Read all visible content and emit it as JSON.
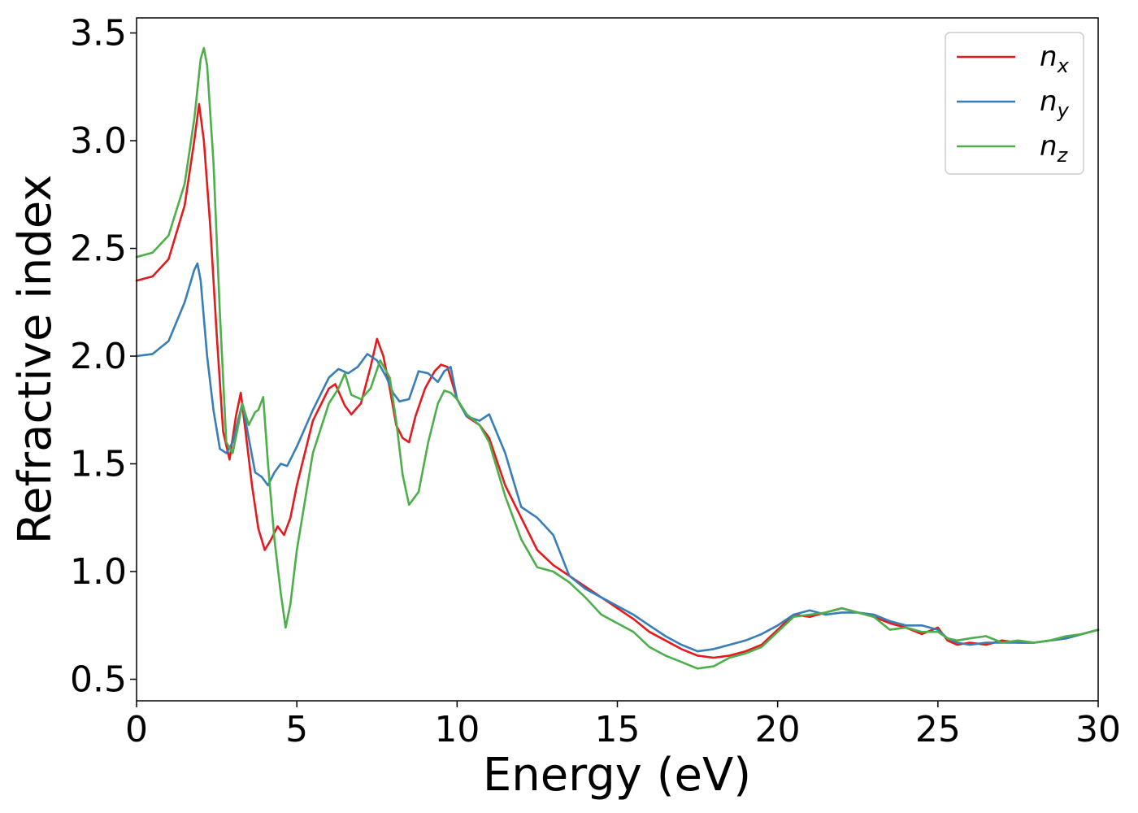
{
  "chart_data": {
    "type": "line",
    "title": "",
    "xlabel": "Energy (eV)",
    "ylabel": "Refractive index",
    "xlim": [
      0,
      30
    ],
    "ylim": [
      0.4,
      3.57
    ],
    "xticks": [
      0,
      5,
      10,
      15,
      20,
      25,
      30
    ],
    "xtick_labels": [
      "0",
      "5",
      "10",
      "15",
      "20",
      "25",
      "30"
    ],
    "yticks": [
      0.5,
      1.0,
      1.5,
      2.0,
      2.5,
      3.0,
      3.5
    ],
    "ytick_labels": [
      "0.5",
      "1.0",
      "1.5",
      "2.0",
      "2.5",
      "3.0",
      "3.5"
    ],
    "grid": false,
    "legend_position": "top-right",
    "series": [
      {
        "name": "n",
        "sub": "x",
        "color": "#e41a1c",
        "x": [
          0,
          0.5,
          1.0,
          1.5,
          1.8,
          1.95,
          2.1,
          2.3,
          2.5,
          2.7,
          2.9,
          3.1,
          3.25,
          3.4,
          3.6,
          3.8,
          4.0,
          4.2,
          4.4,
          4.6,
          4.8,
          5.0,
          5.5,
          6.0,
          6.2,
          6.5,
          6.7,
          7.0,
          7.3,
          7.5,
          7.7,
          7.9,
          8.1,
          8.3,
          8.5,
          8.7,
          9.0,
          9.3,
          9.5,
          9.7,
          10.0,
          10.3,
          10.7,
          11.0,
          11.5,
          12.0,
          12.5,
          13.0,
          13.5,
          14.0,
          14.5,
          15.0,
          15.5,
          16.0,
          16.5,
          17.0,
          17.5,
          18.0,
          18.5,
          19.0,
          19.5,
          20.0,
          20.5,
          21.0,
          21.5,
          22.0,
          22.5,
          23.0,
          23.5,
          24.0,
          24.5,
          25.0,
          25.3,
          25.6,
          26.0,
          26.5,
          27.0,
          27.5,
          28.0,
          28.5,
          29.0,
          29.5,
          30.0
        ],
        "y": [
          2.35,
          2.37,
          2.45,
          2.7,
          3.0,
          3.17,
          3.0,
          2.6,
          2.1,
          1.65,
          1.52,
          1.72,
          1.83,
          1.65,
          1.4,
          1.2,
          1.1,
          1.15,
          1.21,
          1.17,
          1.25,
          1.4,
          1.7,
          1.85,
          1.87,
          1.77,
          1.73,
          1.78,
          1.95,
          2.08,
          2.0,
          1.85,
          1.68,
          1.62,
          1.6,
          1.72,
          1.85,
          1.93,
          1.96,
          1.95,
          1.8,
          1.72,
          1.68,
          1.62,
          1.4,
          1.25,
          1.1,
          1.03,
          0.98,
          0.93,
          0.88,
          0.83,
          0.78,
          0.72,
          0.68,
          0.64,
          0.61,
          0.6,
          0.61,
          0.63,
          0.66,
          0.73,
          0.8,
          0.79,
          0.81,
          0.83,
          0.81,
          0.79,
          0.76,
          0.74,
          0.71,
          0.74,
          0.68,
          0.66,
          0.67,
          0.66,
          0.68,
          0.67,
          0.67,
          0.68,
          0.69,
          0.71,
          0.73
        ]
      },
      {
        "name": "n",
        "sub": "y",
        "color": "#377eb8",
        "x": [
          0,
          0.5,
          1.0,
          1.5,
          1.8,
          1.9,
          2.0,
          2.2,
          2.4,
          2.6,
          2.8,
          3.0,
          3.2,
          3.3,
          3.5,
          3.7,
          3.9,
          4.1,
          4.3,
          4.5,
          4.7,
          5.0,
          5.5,
          6.0,
          6.3,
          6.6,
          6.9,
          7.2,
          7.5,
          7.8,
          8.0,
          8.2,
          8.5,
          8.8,
          9.1,
          9.4,
          9.6,
          9.8,
          10.0,
          10.3,
          10.7,
          11.0,
          11.5,
          12.0,
          12.5,
          13.0,
          13.5,
          14.0,
          14.5,
          15.0,
          15.5,
          16.0,
          16.5,
          17.0,
          17.5,
          18.0,
          18.5,
          19.0,
          19.5,
          20.0,
          20.5,
          21.0,
          21.5,
          22.0,
          22.5,
          23.0,
          23.5,
          24.0,
          24.5,
          25.0,
          25.3,
          25.6,
          26.0,
          26.5,
          27.0,
          27.5,
          28.0,
          28.5,
          29.0,
          29.5,
          30.0
        ],
        "y": [
          2.0,
          2.01,
          2.07,
          2.25,
          2.4,
          2.43,
          2.35,
          2.0,
          1.75,
          1.57,
          1.55,
          1.6,
          1.72,
          1.78,
          1.62,
          1.46,
          1.44,
          1.4,
          1.46,
          1.5,
          1.49,
          1.58,
          1.75,
          1.9,
          1.94,
          1.92,
          1.95,
          2.01,
          1.98,
          1.9,
          1.83,
          1.79,
          1.8,
          1.93,
          1.92,
          1.88,
          1.93,
          1.95,
          1.8,
          1.72,
          1.7,
          1.73,
          1.55,
          1.3,
          1.25,
          1.17,
          0.98,
          0.92,
          0.88,
          0.84,
          0.8,
          0.75,
          0.7,
          0.66,
          0.63,
          0.64,
          0.66,
          0.68,
          0.71,
          0.75,
          0.8,
          0.82,
          0.8,
          0.81,
          0.81,
          0.8,
          0.77,
          0.75,
          0.75,
          0.73,
          0.69,
          0.67,
          0.66,
          0.67,
          0.67,
          0.67,
          0.67,
          0.68,
          0.69,
          0.71,
          0.73
        ]
      },
      {
        "name": "n",
        "sub": "z",
        "color": "#4daf4a",
        "x": [
          0,
          0.5,
          1.0,
          1.5,
          1.8,
          2.0,
          2.1,
          2.2,
          2.4,
          2.6,
          2.8,
          3.0,
          3.2,
          3.3,
          3.5,
          3.7,
          3.8,
          3.95,
          4.1,
          4.3,
          4.5,
          4.65,
          4.8,
          5.0,
          5.5,
          6.0,
          6.3,
          6.5,
          6.7,
          7.0,
          7.3,
          7.6,
          7.9,
          8.1,
          8.3,
          8.5,
          8.8,
          9.1,
          9.4,
          9.6,
          9.8,
          10.0,
          10.3,
          10.7,
          11.0,
          11.5,
          12.0,
          12.5,
          13.0,
          13.5,
          14.0,
          14.5,
          15.0,
          15.5,
          16.0,
          16.5,
          17.0,
          17.5,
          18.0,
          18.5,
          19.0,
          19.5,
          20.0,
          20.5,
          21.0,
          21.5,
          22.0,
          22.5,
          23.0,
          23.5,
          24.0,
          24.5,
          25.0,
          25.3,
          25.6,
          26.0,
          26.5,
          27.0,
          27.5,
          28.0,
          28.5,
          29.0,
          29.5,
          30.0
        ],
        "y": [
          2.46,
          2.48,
          2.56,
          2.8,
          3.1,
          3.38,
          3.43,
          3.35,
          2.9,
          2.2,
          1.6,
          1.55,
          1.7,
          1.78,
          1.68,
          1.74,
          1.75,
          1.81,
          1.5,
          1.15,
          0.9,
          0.74,
          0.85,
          1.1,
          1.55,
          1.78,
          1.85,
          1.92,
          1.82,
          1.8,
          1.85,
          1.98,
          1.9,
          1.7,
          1.45,
          1.31,
          1.37,
          1.6,
          1.78,
          1.84,
          1.83,
          1.8,
          1.73,
          1.68,
          1.6,
          1.35,
          1.15,
          1.02,
          1.0,
          0.95,
          0.88,
          0.8,
          0.76,
          0.72,
          0.65,
          0.61,
          0.58,
          0.55,
          0.56,
          0.6,
          0.62,
          0.65,
          0.72,
          0.79,
          0.8,
          0.81,
          0.83,
          0.81,
          0.79,
          0.73,
          0.74,
          0.72,
          0.72,
          0.69,
          0.68,
          0.69,
          0.7,
          0.67,
          0.68,
          0.67,
          0.68,
          0.7,
          0.71,
          0.73
        ]
      }
    ]
  }
}
